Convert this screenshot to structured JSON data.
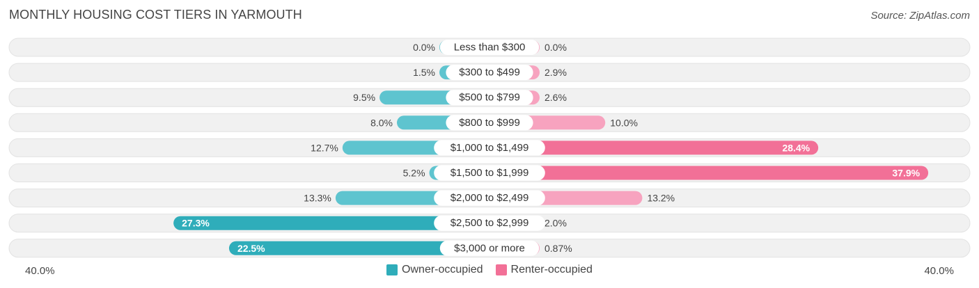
{
  "title": "MONTHLY HOUSING COST TIERS IN YARMOUTH",
  "source": "Source: ZipAtlas.com",
  "colors": {
    "owner": "#5ec4cf",
    "owner_strong": "#2fadba",
    "renter": "#f7a3bf",
    "renter_strong": "#f27097",
    "track": "#f1f1f1"
  },
  "legend": {
    "owner_label": "Owner-occupied",
    "renter_label": "Renter-occupied"
  },
  "axis": {
    "left_label": "40.0%",
    "right_label": "40.0%"
  },
  "chart_data": {
    "type": "bar",
    "orientation": "horizontal-diverging",
    "categories": [
      "Less than $300",
      "$300 to $499",
      "$500 to $799",
      "$800 to $999",
      "$1,000 to $1,499",
      "$1,500 to $1,999",
      "$2,000 to $2,499",
      "$2,500 to $2,999",
      "$3,000 or more"
    ],
    "series": [
      {
        "name": "Owner-occupied",
        "values": [
          0.0,
          1.5,
          9.5,
          8.0,
          12.7,
          5.2,
          13.3,
          27.3,
          22.5
        ],
        "labels": [
          "0.0%",
          "1.5%",
          "9.5%",
          "8.0%",
          "12.7%",
          "5.2%",
          "13.3%",
          "27.3%",
          "22.5%"
        ]
      },
      {
        "name": "Renter-occupied",
        "values": [
          0.0,
          2.9,
          2.6,
          10.0,
          28.4,
          37.9,
          13.2,
          2.0,
          0.87
        ],
        "labels": [
          "0.0%",
          "2.9%",
          "2.6%",
          "10.0%",
          "28.4%",
          "37.9%",
          "13.2%",
          "2.0%",
          "0.87%"
        ]
      }
    ],
    "xlim": [
      -40,
      40
    ]
  }
}
